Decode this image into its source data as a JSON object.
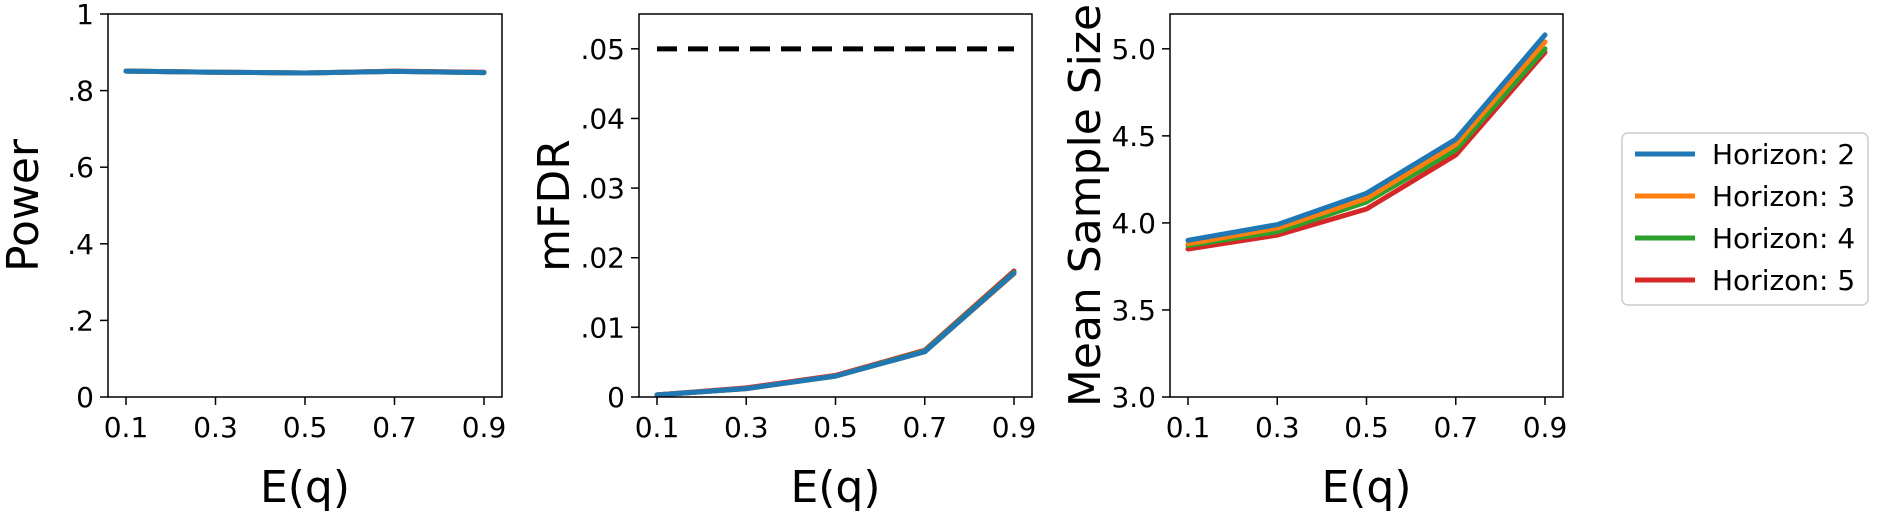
{
  "legend": {
    "placement": "right",
    "entries": [
      {
        "label": "Horizon: 2",
        "color": "#1f77b4"
      },
      {
        "label": "Horizon: 3",
        "color": "#ff7f0e"
      },
      {
        "label": "Horizon: 4",
        "color": "#2ca02c"
      },
      {
        "label": "Horizon: 5",
        "color": "#d62728"
      }
    ]
  },
  "chart_data": [
    {
      "type": "line",
      "xlabel": "E(q)",
      "ylabel": "Power",
      "x": [
        0.1,
        0.3,
        0.5,
        0.7,
        0.9
      ],
      "xticks": [
        "0.1",
        "0.3",
        "0.5",
        "0.7",
        "0.9"
      ],
      "ylim": [
        0,
        1
      ],
      "yticks": [
        {
          "value": 0,
          "label": "0"
        },
        {
          "value": 0.2,
          "label": ".2"
        },
        {
          "value": 0.4,
          "label": ".4"
        },
        {
          "value": 0.6,
          "label": ".6"
        },
        {
          "value": 0.8,
          "label": ".8"
        },
        {
          "value": 1,
          "label": "1"
        }
      ],
      "grid": false,
      "series": [
        {
          "name": "Horizon: 2",
          "color": "#1f77b4",
          "values": [
            0.851,
            0.848,
            0.846,
            0.85,
            0.847
          ]
        },
        {
          "name": "Horizon: 3",
          "color": "#ff7f0e",
          "values": [
            0.851,
            0.848,
            0.846,
            0.85,
            0.847
          ]
        },
        {
          "name": "Horizon: 4",
          "color": "#2ca02c",
          "values": [
            0.851,
            0.848,
            0.846,
            0.85,
            0.847
          ]
        },
        {
          "name": "Horizon: 5",
          "color": "#d62728",
          "values": [
            0.851,
            0.848,
            0.846,
            0.851,
            0.848
          ]
        }
      ]
    },
    {
      "type": "line",
      "xlabel": "E(q)",
      "ylabel": "mFDR",
      "x": [
        0.1,
        0.3,
        0.5,
        0.7,
        0.9
      ],
      "xticks": [
        "0.1",
        "0.3",
        "0.5",
        "0.7",
        "0.9"
      ],
      "ylim": [
        0,
        0.055
      ],
      "yticks": [
        {
          "value": 0,
          "label": "0"
        },
        {
          "value": 0.01,
          "label": ".01"
        },
        {
          "value": 0.02,
          "label": ".02"
        },
        {
          "value": 0.03,
          "label": ".03"
        },
        {
          "value": 0.04,
          "label": ".04"
        },
        {
          "value": 0.05,
          "label": ".05"
        }
      ],
      "grid": false,
      "reference_line": {
        "y": 0.05,
        "style": "dashed",
        "color": "#000000"
      },
      "series": [
        {
          "name": "Horizon: 2",
          "color": "#1f77b4",
          "values": [
            0.0003,
            0.0012,
            0.003,
            0.0065,
            0.0178
          ]
        },
        {
          "name": "Horizon: 3",
          "color": "#ff7f0e",
          "values": [
            0.0003,
            0.0012,
            0.003,
            0.0065,
            0.0177
          ]
        },
        {
          "name": "Horizon: 4",
          "color": "#2ca02c",
          "values": [
            0.0003,
            0.0012,
            0.003,
            0.0066,
            0.0179
          ]
        },
        {
          "name": "Horizon: 5",
          "color": "#d62728",
          "values": [
            0.0003,
            0.0013,
            0.0031,
            0.0067,
            0.0181
          ]
        }
      ]
    },
    {
      "type": "line",
      "xlabel": "E(q)",
      "ylabel": "Mean Sample Size",
      "x": [
        0.1,
        0.3,
        0.5,
        0.7,
        0.9
      ],
      "xticks": [
        "0.1",
        "0.3",
        "0.5",
        "0.7",
        "0.9"
      ],
      "ylim": [
        3.0,
        5.2
      ],
      "yticks": [
        {
          "value": 3.0,
          "label": "3.0"
        },
        {
          "value": 3.5,
          "label": "3.5"
        },
        {
          "value": 4.0,
          "label": "4.0"
        },
        {
          "value": 4.5,
          "label": "4.5"
        },
        {
          "value": 5.0,
          "label": "5.0"
        }
      ],
      "grid": false,
      "series": [
        {
          "name": "Horizon: 2",
          "color": "#1f77b4",
          "values": [
            3.9,
            3.99,
            4.17,
            4.48,
            5.08
          ]
        },
        {
          "name": "Horizon: 3",
          "color": "#ff7f0e",
          "values": [
            3.88,
            3.97,
            4.14,
            4.45,
            5.04
          ]
        },
        {
          "name": "Horizon: 4",
          "color": "#2ca02c",
          "values": [
            3.87,
            3.95,
            4.12,
            4.42,
            5.0
          ]
        },
        {
          "name": "Horizon: 5",
          "color": "#d62728",
          "values": [
            3.85,
            3.93,
            4.08,
            4.39,
            4.98
          ]
        }
      ]
    }
  ]
}
